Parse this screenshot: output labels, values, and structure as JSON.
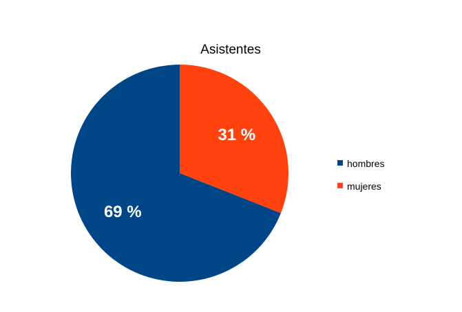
{
  "chart_data": {
    "type": "pie",
    "title": "Asistentes",
    "categories": [
      "hombres",
      "mujeres"
    ],
    "values": [
      69,
      31
    ],
    "value_labels": [
      "69 %",
      "31 %"
    ],
    "colors": [
      "#004586",
      "#ff420e"
    ],
    "legend_position": "right",
    "start": "top, clockwise from mujeres"
  }
}
